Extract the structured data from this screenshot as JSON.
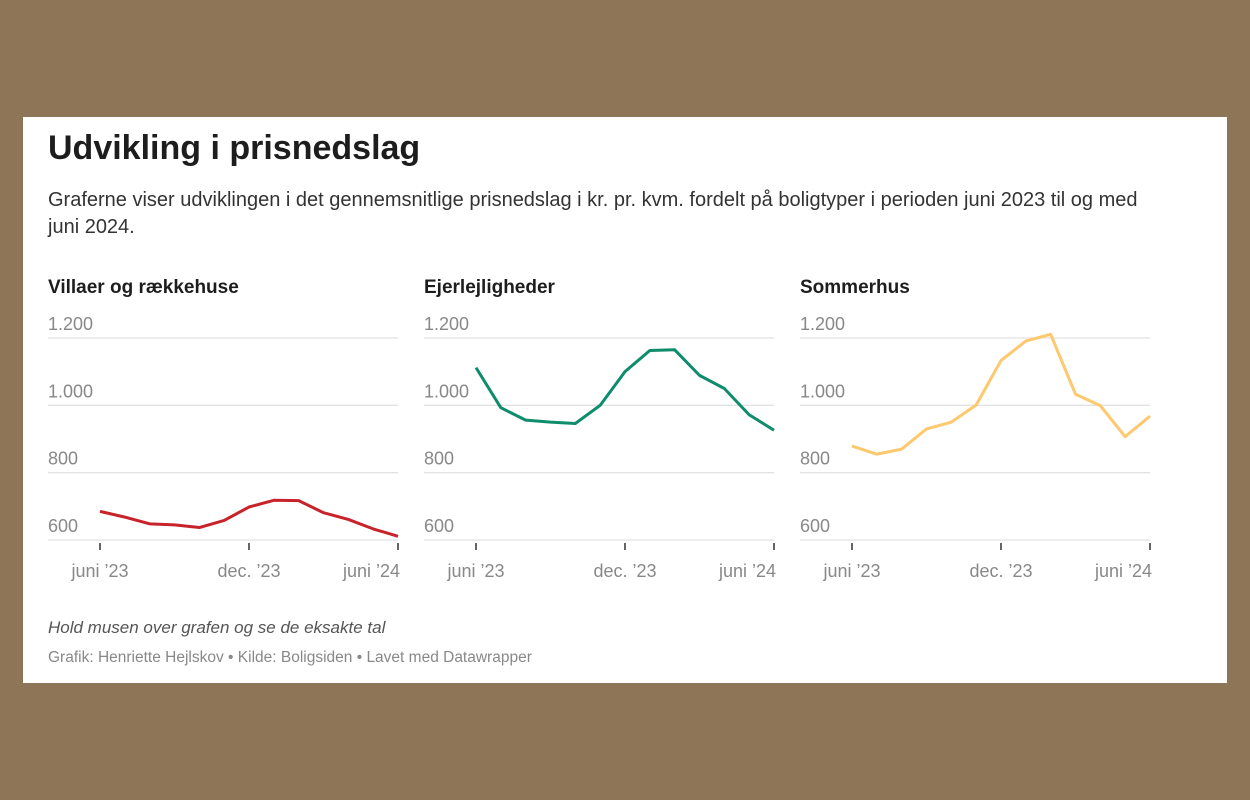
{
  "title": "Udvikling i prisnedslag",
  "subtitle": "Graferne viser udviklingen i det gennemsnitlige prisnedslag i kr. pr. kvm. fordelt på boligtyper i perioden juni 2023 til og med juni 2024.",
  "note": "Hold musen over grafen og se de eksakte tal",
  "source": {
    "author": "Grafik: Henriette Hejlskov",
    "sep": " • ",
    "origin": "Kilde: Boligsiden",
    "tool": "Lavet med Datawrapper"
  },
  "chart_data": [
    {
      "type": "line",
      "title": "Villaer og rækkehuse",
      "color": "#c8232b",
      "x": [
        "jun 23",
        "jul 23",
        "aug 23",
        "sep 23",
        "okt 23",
        "nov 23",
        "dec 23",
        "jan 24",
        "feb 24",
        "mar 24",
        "apr 24",
        "maj 24",
        "jun 24"
      ],
      "values": [
        685,
        668,
        648,
        645,
        637,
        658,
        698,
        718,
        717,
        681,
        661,
        633,
        611
      ],
      "ylim": [
        600,
        1200
      ],
      "yticks": [
        600,
        800,
        1000,
        1200
      ],
      "ytick_labels": [
        "600",
        "800",
        "1.000",
        "1.200"
      ],
      "xtick_labels": [
        "juni ’23",
        "dec. ’23",
        "juni ’24"
      ],
      "xtick_index": [
        0,
        6,
        12
      ]
    },
    {
      "type": "line",
      "title": "Ejerlejligheder",
      "color": "#0e8c6c",
      "x": [
        "jun 23",
        "jul 23",
        "aug 23",
        "sep 23",
        "okt 23",
        "nov 23",
        "dec 23",
        "jan 24",
        "feb 24",
        "mar 24",
        "apr 24",
        "maj 24",
        "jun 24"
      ],
      "values": [
        1112,
        993,
        956,
        950,
        946,
        1000,
        1100,
        1163,
        1165,
        1089,
        1050,
        972,
        926
      ],
      "ylim": [
        600,
        1200
      ],
      "yticks": [
        600,
        800,
        1000,
        1200
      ],
      "ytick_labels": [
        "600",
        "800",
        "1.000",
        "1.200"
      ],
      "xtick_labels": [
        "juni ’23",
        "dec. ’23",
        "juni ’24"
      ],
      "xtick_index": [
        0,
        6,
        12
      ]
    },
    {
      "type": "line",
      "title": "Sommerhus",
      "color": "#fdc86e",
      "x": [
        "jun 23",
        "jul 23",
        "aug 23",
        "sep 23",
        "okt 23",
        "nov 23",
        "dec 23",
        "jan 24",
        "feb 24",
        "mar 24",
        "apr 24",
        "maj 24",
        "jun 24"
      ],
      "values": [
        879,
        855,
        870,
        930,
        950,
        1001,
        1133,
        1191,
        1211,
        1033,
        999,
        907,
        968
      ],
      "ylim": [
        600,
        1200
      ],
      "yticks": [
        600,
        800,
        1000,
        1200
      ],
      "ytick_labels": [
        "600",
        "800",
        "1.000",
        "1.200"
      ],
      "xtick_labels": [
        "juni ’23",
        "dec. ’23",
        "juni ’24"
      ],
      "xtick_index": [
        0,
        6,
        12
      ]
    }
  ]
}
